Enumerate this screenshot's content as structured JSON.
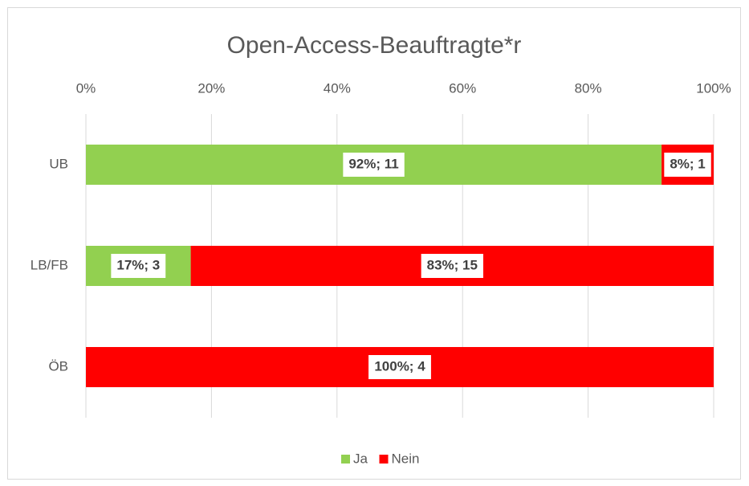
{
  "chart_data": {
    "type": "stacked_barh",
    "title": "Open-Access-Beauftragte*r",
    "categories": [
      "UB",
      "LB/FB",
      "ÖB"
    ],
    "series": [
      {
        "name": "Ja",
        "color": "#92d050",
        "values": [
          91.7,
          16.7,
          0
        ],
        "value_labels": [
          "92%; 11",
          "17%; 3",
          null
        ]
      },
      {
        "name": "Nein",
        "color": "#ff0000",
        "values": [
          8.3,
          83.3,
          100
        ],
        "value_labels": [
          "8%; 1",
          "83%; 15",
          "100%; 4"
        ]
      }
    ],
    "xlim": [
      0,
      100
    ],
    "xticks": [
      {
        "value": 0,
        "label": "0%"
      },
      {
        "value": 20,
        "label": "20%"
      },
      {
        "value": 40,
        "label": "40%"
      },
      {
        "value": 60,
        "label": "60%"
      },
      {
        "value": 80,
        "label": "80%"
      },
      {
        "value": 100,
        "label": "100%"
      }
    ],
    "grid": true,
    "legend": "bottom"
  }
}
